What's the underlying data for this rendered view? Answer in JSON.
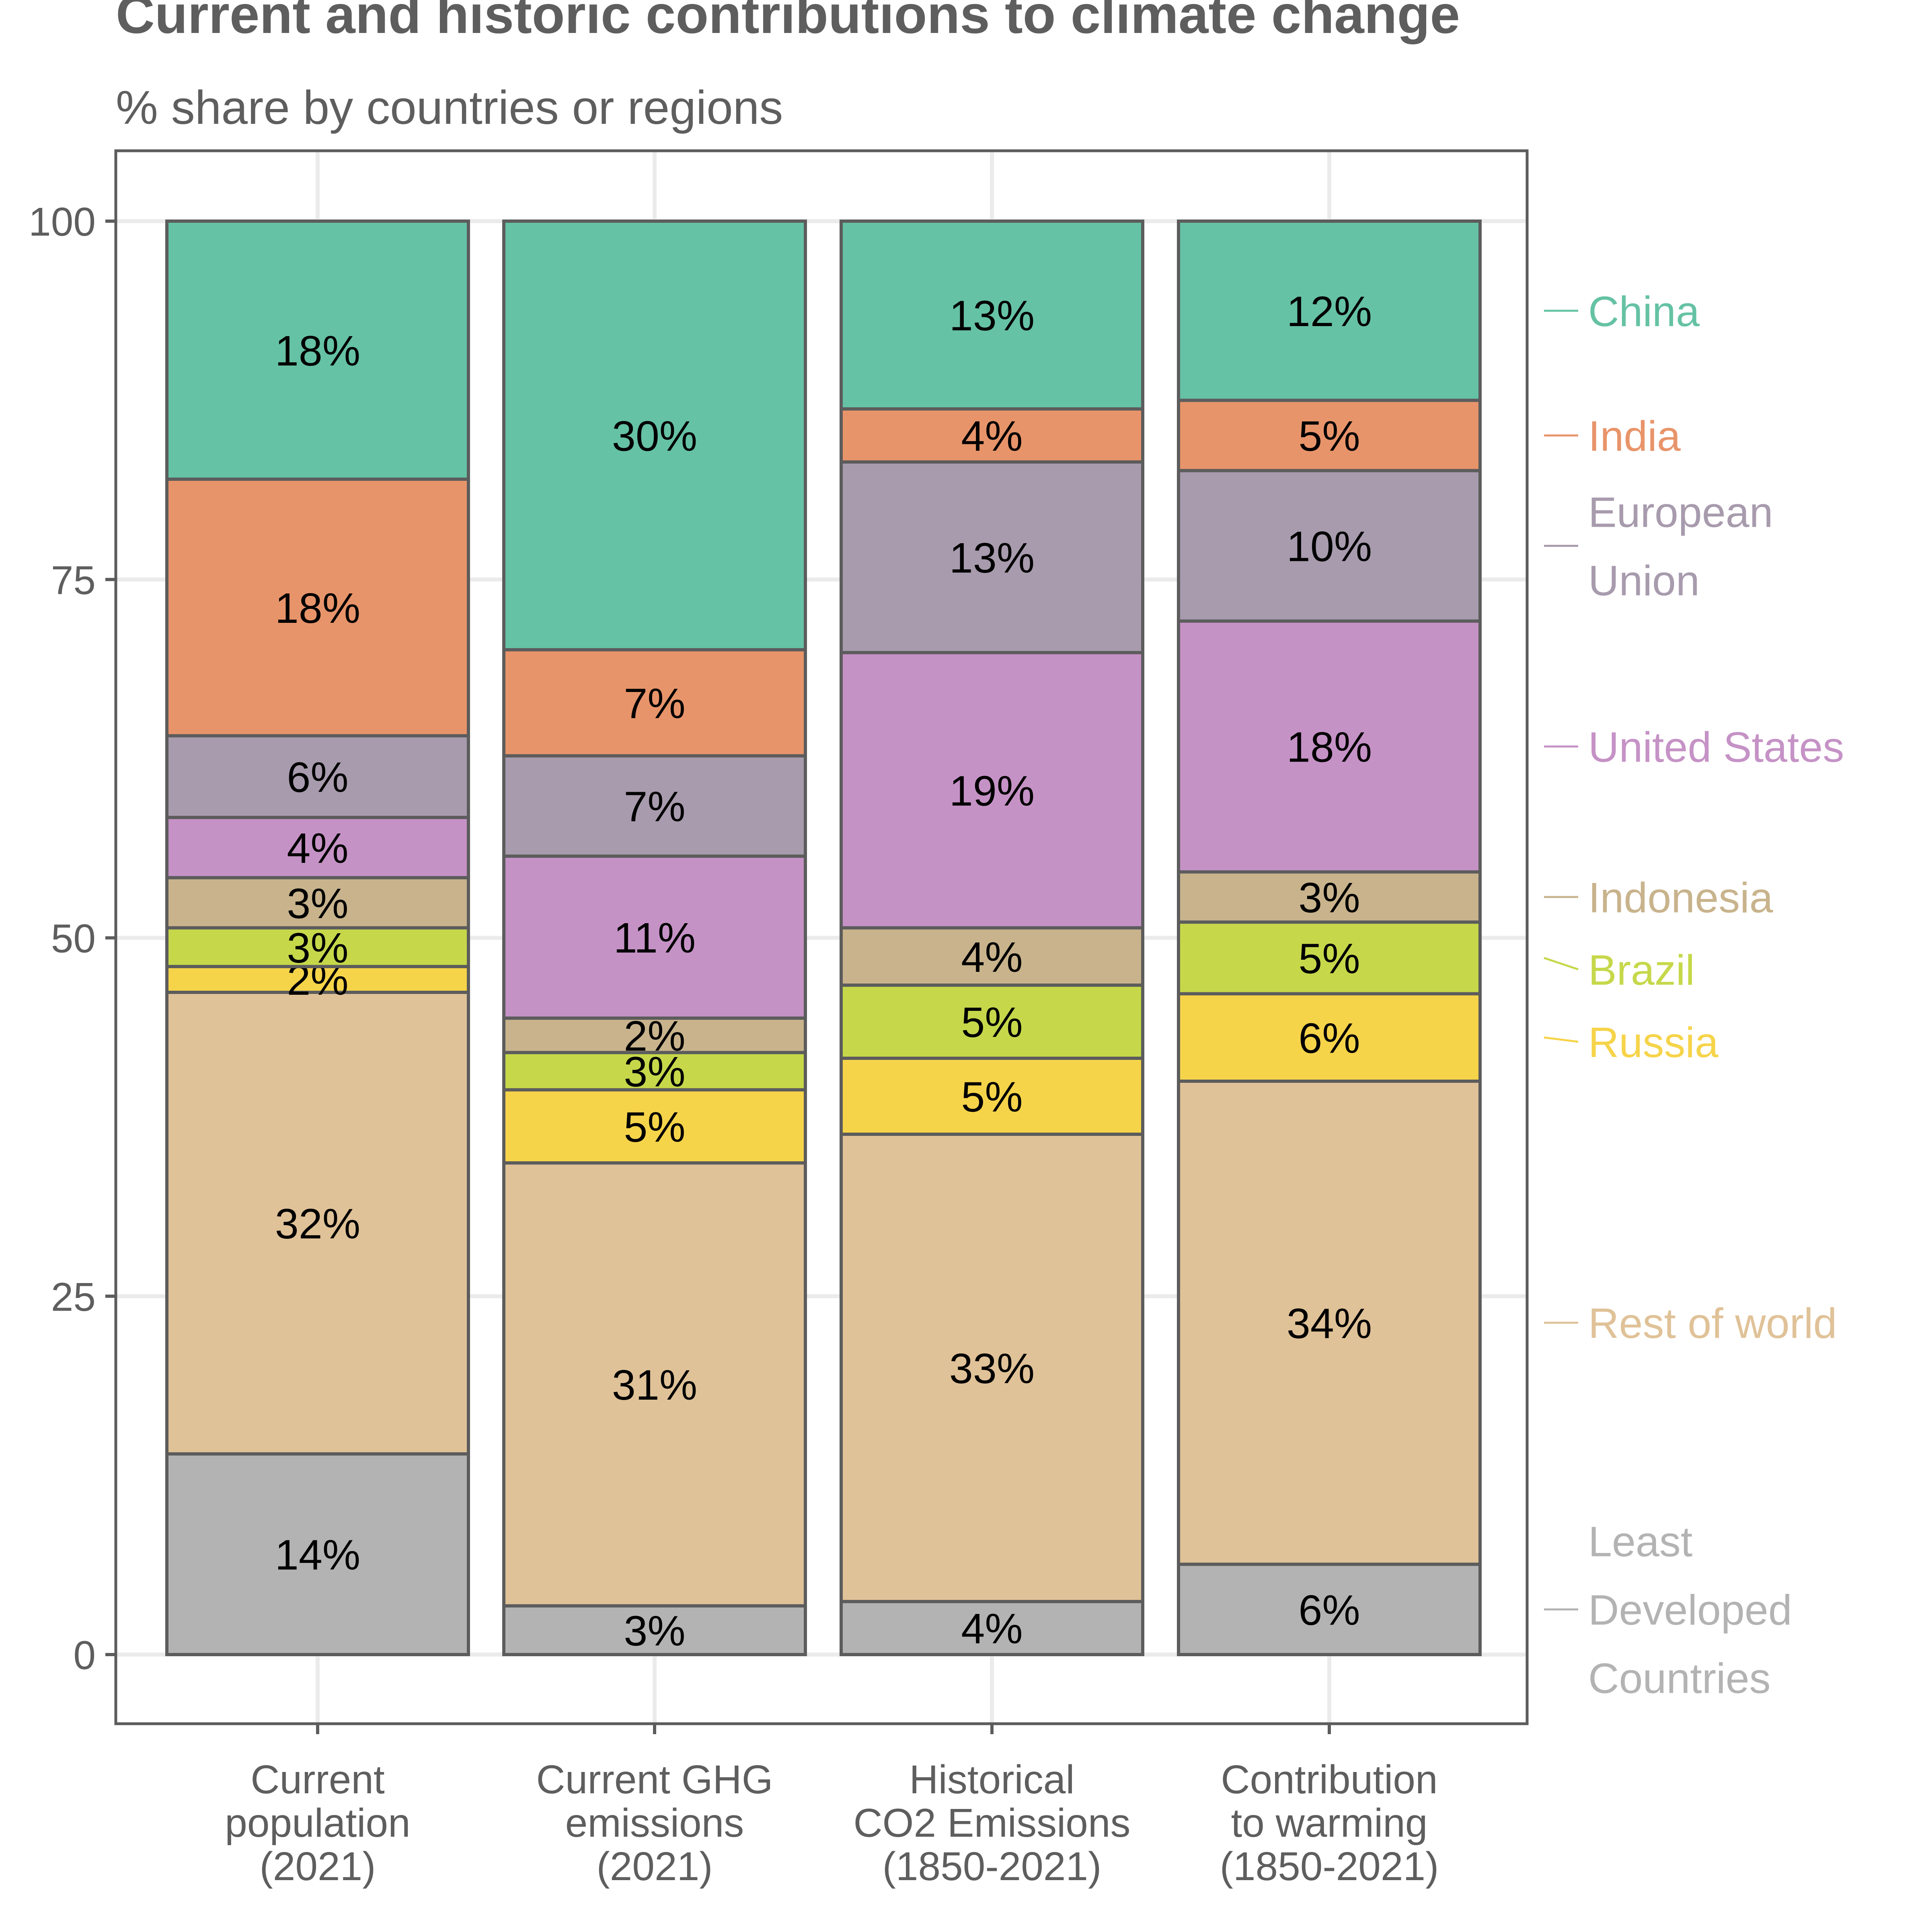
{
  "title": "Current and historic contributions to climate change",
  "subtitle": "% share by countries or regions",
  "chart_data": {
    "type": "bar",
    "stacked": true,
    "categories": [
      [
        "Current",
        "population",
        "(2021)"
      ],
      [
        "Current GHG",
        "emissions",
        "(2021)"
      ],
      [
        "Historical",
        "CO2 Emissions",
        "(1850-2021)"
      ],
      [
        "Contribution",
        "to warming",
        "(1850-2021)"
      ]
    ],
    "ylim": [
      0,
      100
    ],
    "yticks": [
      0,
      25,
      50,
      75,
      100
    ],
    "grid": true,
    "legend_position": "right, labels at series midpoints",
    "series": [
      {
        "name": [
          "Least",
          "Developed",
          "Countries"
        ],
        "color": "#b3b3b3",
        "values": [
          14,
          3.4,
          3.7,
          6.3
        ],
        "labels": [
          "14%",
          "3%",
          "4%",
          "6%"
        ]
      },
      {
        "name": [
          "Rest of world"
        ],
        "color": "#e0c298",
        "values": [
          32.2,
          30.9,
          32.6,
          33.7
        ],
        "labels": [
          "32%",
          "31%",
          "33%",
          "34%"
        ]
      },
      {
        "name": [
          "Russia"
        ],
        "color": "#f6d44a",
        "values": [
          1.8,
          5.1,
          5.3,
          6.1
        ],
        "labels": [
          "2%",
          "5%",
          "5%",
          "6%"
        ]
      },
      {
        "name": [
          "Brazil"
        ],
        "color": "#c6d84a",
        "values": [
          2.7,
          2.6,
          5.1,
          5.0
        ],
        "labels": [
          "3%",
          "3%",
          "5%",
          "5%"
        ]
      },
      {
        "name": [
          "Indonesia"
        ],
        "color": "#c8b38c",
        "values": [
          3.5,
          2.4,
          4.0,
          3.5
        ],
        "labels": [
          "3%",
          "2%",
          "4%",
          "3%"
        ]
      },
      {
        "name": [
          "United States"
        ],
        "color": "#c592c6",
        "values": [
          4.2,
          11.3,
          19.2,
          17.5
        ],
        "labels": [
          "4%",
          "11%",
          "19%",
          "18%"
        ]
      },
      {
        "name": [
          "European",
          "Union"
        ],
        "color": "#a79bad",
        "values": [
          5.7,
          7.0,
          13.3,
          10.5
        ],
        "labels": [
          "6%",
          "7%",
          "13%",
          "10%"
        ]
      },
      {
        "name": [
          "India"
        ],
        "color": "#e8946a",
        "values": [
          17.9,
          7.4,
          3.7,
          4.9
        ],
        "labels": [
          "18%",
          "7%",
          "4%",
          "5%"
        ]
      },
      {
        "name": [
          "China"
        ],
        "color": "#65c2a4",
        "values": [
          18.0,
          29.9,
          13.1,
          12.5
        ],
        "labels": [
          "18%",
          "30%",
          "13%",
          "12%"
        ]
      }
    ]
  }
}
